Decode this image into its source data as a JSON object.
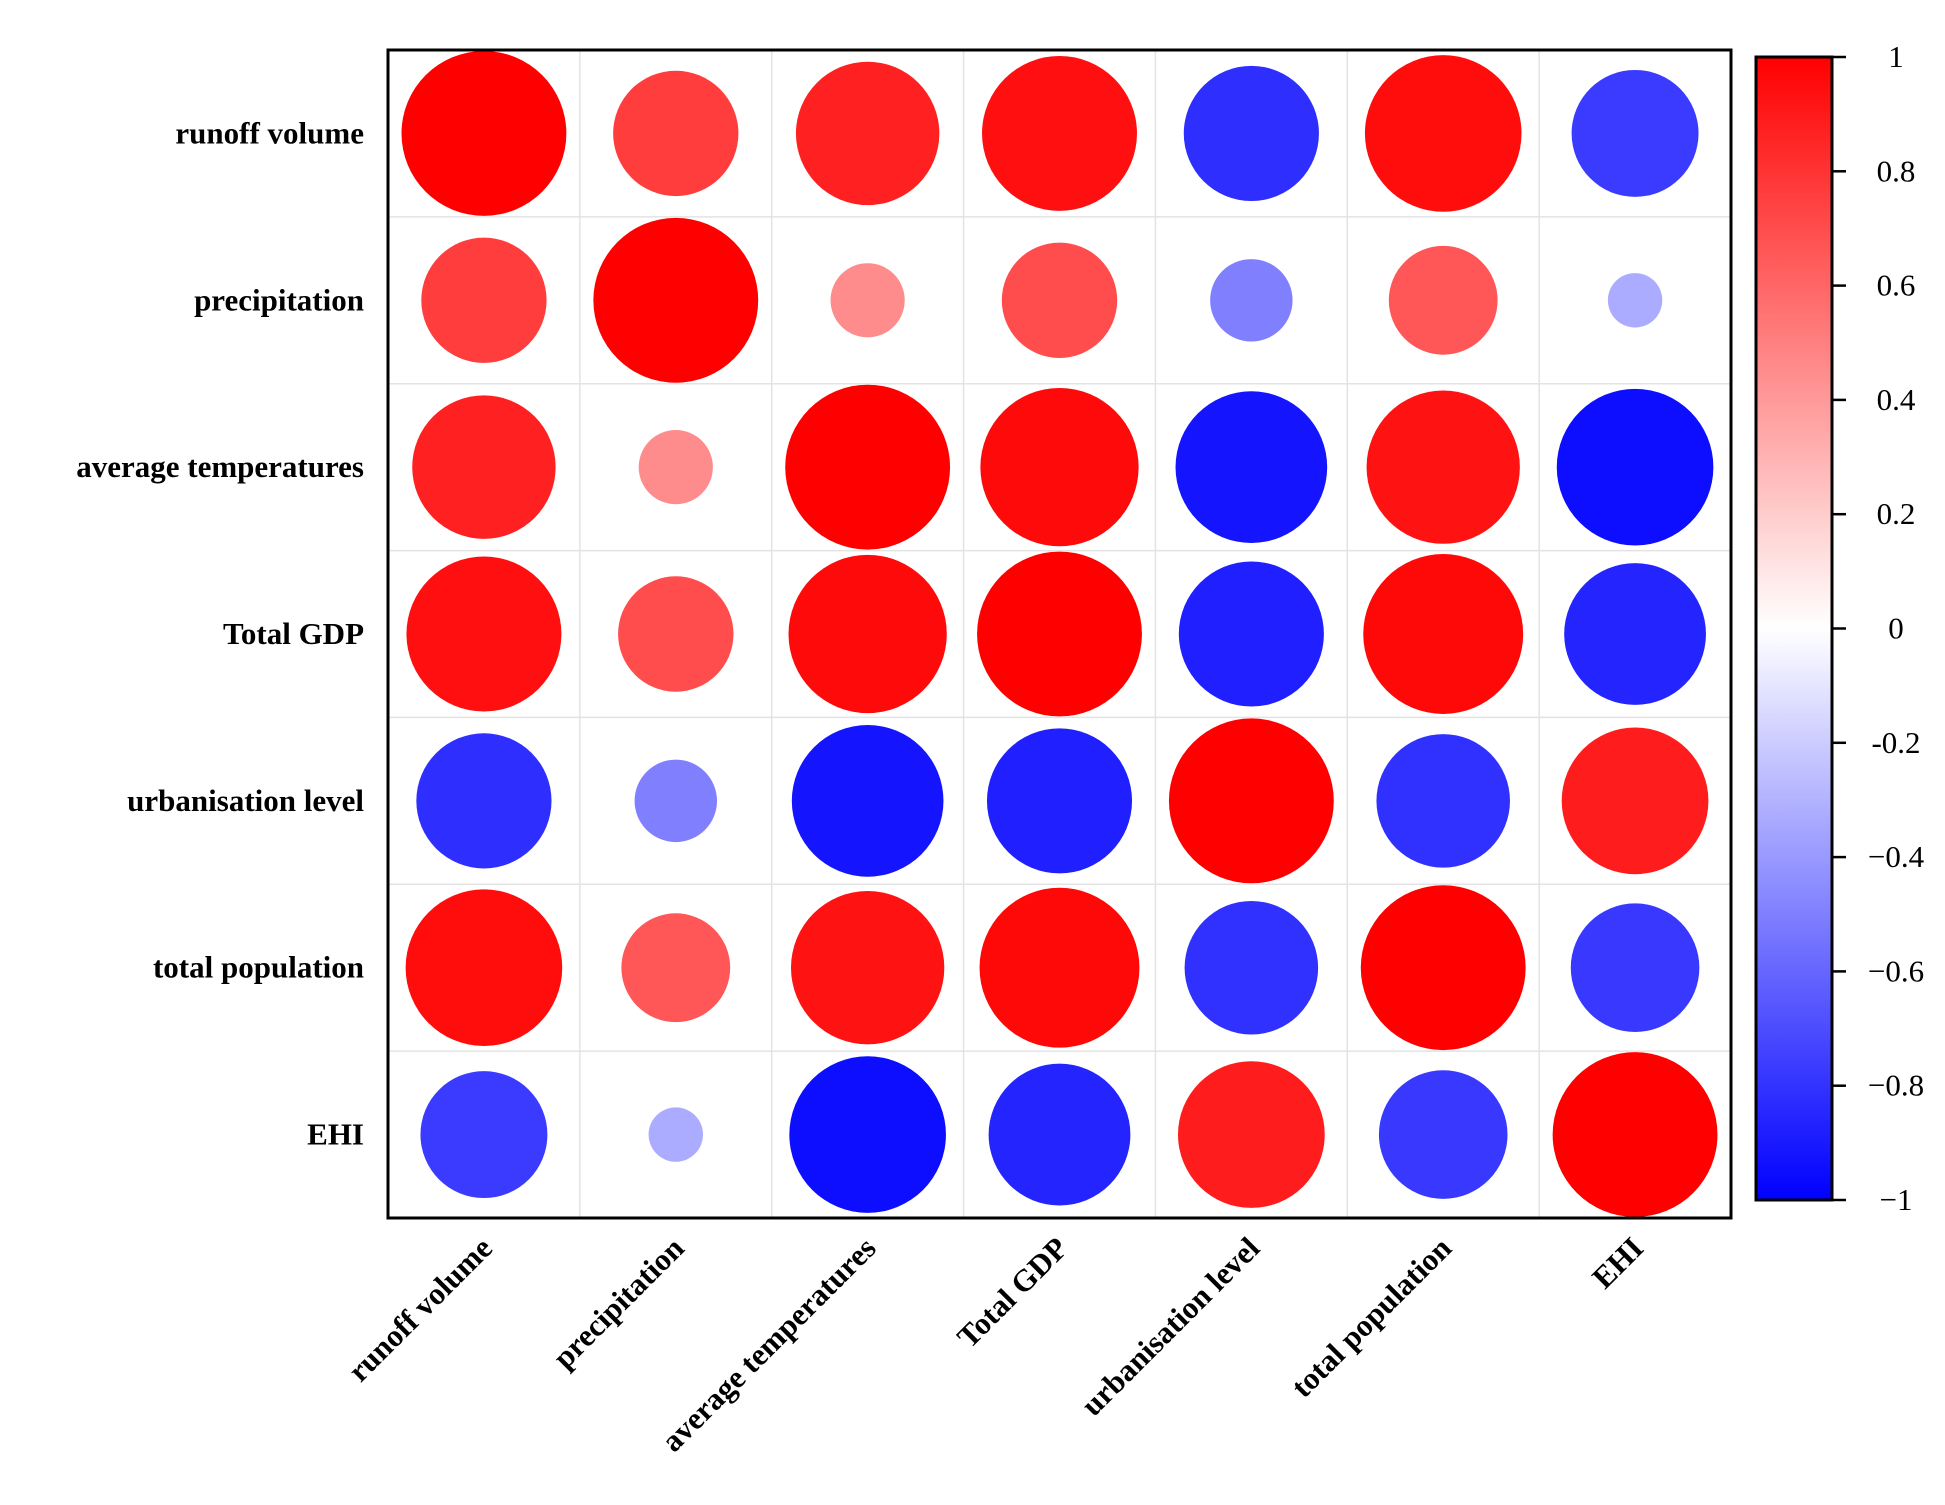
{
  "chart_data": {
    "type": "heatmap",
    "variant": "correlation-circle-matrix",
    "title": "",
    "variables": [
      "runoff volume",
      "precipitation",
      "average temperatures",
      "Total GDP",
      "urbanisation level",
      "total population",
      "EHI"
    ],
    "matrix": [
      [
        1.0,
        0.76,
        0.87,
        0.94,
        -0.82,
        0.95,
        -0.77
      ],
      [
        0.76,
        1.0,
        0.45,
        0.7,
        -0.5,
        0.66,
        -0.33
      ],
      [
        0.87,
        0.45,
        1.0,
        0.96,
        -0.92,
        0.93,
        -0.95
      ],
      [
        0.94,
        0.7,
        0.96,
        1.0,
        -0.88,
        0.97,
        -0.86
      ],
      [
        -0.82,
        -0.5,
        -0.92,
        -0.88,
        1.0,
        -0.81,
        0.89
      ],
      [
        0.95,
        0.66,
        0.93,
        0.97,
        -0.81,
        1.0,
        -0.78
      ],
      [
        -0.77,
        -0.33,
        -0.95,
        -0.86,
        0.89,
        -0.78,
        1.0
      ]
    ],
    "colorbar": {
      "range": [
        -1,
        1
      ],
      "ticks": [
        "1",
        "0.8",
        "0.6",
        "0.4",
        "0.2",
        "0",
        "-0.2",
        "−0.4",
        "−0.6",
        "−0.8",
        "−1"
      ],
      "tick_values": [
        1,
        0.8,
        0.6,
        0.4,
        0.2,
        0,
        -0.2,
        -0.4,
        -0.6,
        -0.8,
        -1
      ],
      "colors": {
        "negative": "#0000ff",
        "zero": "#ffffff",
        "positive": "#ff0000"
      }
    },
    "grid": true,
    "xlabel": "",
    "ylabel": ""
  }
}
